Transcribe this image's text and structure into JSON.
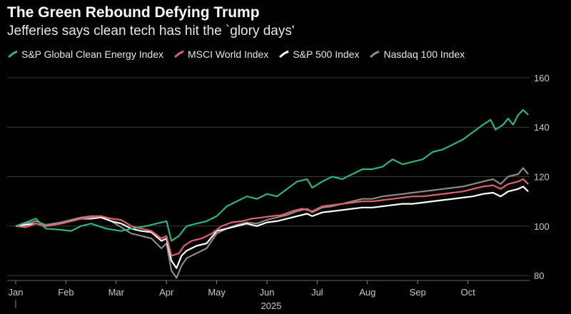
{
  "chart_data": {
    "type": "line",
    "title": "The Green Rebound Defying Trump",
    "subtitle": "Jefferies says clean tech has hit the `glory days'",
    "xlabel": "2025",
    "ylabel": "",
    "ylim": [
      78,
      162
    ],
    "y_ticks": [
      80,
      100,
      120,
      140,
      160
    ],
    "x_ticks": [
      "Jan",
      "Feb",
      "Mar",
      "Apr",
      "May",
      "Jun",
      "Jul",
      "Aug",
      "Sep",
      "Oct"
    ],
    "year_label": "2025",
    "grid": true,
    "legend_position": "top-left",
    "series": [
      {
        "name": "S&P Global Clean Energy Index",
        "color": "#2fb37a",
        "points": [
          [
            0,
            100
          ],
          [
            0.2,
            101.5
          ],
          [
            0.4,
            103
          ],
          [
            0.6,
            99
          ],
          [
            0.9,
            98.5
          ],
          [
            1.1,
            98
          ],
          [
            1.3,
            100
          ],
          [
            1.5,
            101
          ],
          [
            1.8,
            99
          ],
          [
            2.1,
            98
          ],
          [
            2.3,
            99
          ],
          [
            2.6,
            100
          ],
          [
            2.8,
            101
          ],
          [
            3.0,
            102
          ],
          [
            3.1,
            94
          ],
          [
            3.25,
            96
          ],
          [
            3.4,
            100
          ],
          [
            3.6,
            101
          ],
          [
            3.8,
            102
          ],
          [
            4.0,
            104
          ],
          [
            4.2,
            108
          ],
          [
            4.4,
            110
          ],
          [
            4.6,
            112
          ],
          [
            4.8,
            111
          ],
          [
            5.0,
            113
          ],
          [
            5.2,
            112
          ],
          [
            5.4,
            115
          ],
          [
            5.6,
            118
          ],
          [
            5.8,
            119
          ],
          [
            5.9,
            115.5
          ],
          [
            6.1,
            118
          ],
          [
            6.3,
            120
          ],
          [
            6.5,
            119
          ],
          [
            6.7,
            121
          ],
          [
            6.9,
            123
          ],
          [
            7.1,
            123
          ],
          [
            7.3,
            124
          ],
          [
            7.5,
            127
          ],
          [
            7.7,
            125
          ],
          [
            7.9,
            126
          ],
          [
            8.1,
            127
          ],
          [
            8.3,
            130
          ],
          [
            8.5,
            131
          ],
          [
            8.7,
            133
          ],
          [
            8.9,
            135
          ],
          [
            9.1,
            138
          ],
          [
            9.3,
            141
          ],
          [
            9.45,
            143
          ],
          [
            9.55,
            139
          ],
          [
            9.7,
            141
          ],
          [
            9.8,
            143.5
          ],
          [
            9.9,
            141
          ],
          [
            10.0,
            145
          ],
          [
            10.1,
            147
          ],
          [
            10.2,
            145
          ]
        ]
      },
      {
        "name": "MSCI World Index",
        "color": "#e0606e",
        "points": [
          [
            0,
            100
          ],
          [
            0.2,
            99.5
          ],
          [
            0.4,
            101
          ],
          [
            0.6,
            100
          ],
          [
            0.9,
            101
          ],
          [
            1.1,
            102
          ],
          [
            1.3,
            103
          ],
          [
            1.5,
            103.5
          ],
          [
            1.7,
            104
          ],
          [
            1.9,
            103
          ],
          [
            2.1,
            102.5
          ],
          [
            2.3,
            100
          ],
          [
            2.5,
            99
          ],
          [
            2.7,
            98
          ],
          [
            2.9,
            95
          ],
          [
            3.0,
            96
          ],
          [
            3.1,
            88
          ],
          [
            3.25,
            89
          ],
          [
            3.35,
            92
          ],
          [
            3.5,
            94
          ],
          [
            3.7,
            95
          ],
          [
            3.9,
            97
          ],
          [
            4.1,
            100
          ],
          [
            4.3,
            101.5
          ],
          [
            4.5,
            102
          ],
          [
            4.7,
            103
          ],
          [
            4.9,
            103.5
          ],
          [
            5.1,
            104
          ],
          [
            5.3,
            104.5
          ],
          [
            5.5,
            106
          ],
          [
            5.7,
            107
          ],
          [
            5.9,
            106
          ],
          [
            6.1,
            108
          ],
          [
            6.3,
            108.5
          ],
          [
            6.5,
            109
          ],
          [
            6.7,
            109.5
          ],
          [
            6.9,
            110
          ],
          [
            7.1,
            110
          ],
          [
            7.3,
            110.5
          ],
          [
            7.5,
            111
          ],
          [
            7.7,
            111.5
          ],
          [
            7.9,
            112
          ],
          [
            8.1,
            112
          ],
          [
            8.3,
            112.5
          ],
          [
            8.5,
            113
          ],
          [
            8.7,
            113.5
          ],
          [
            8.9,
            114
          ],
          [
            9.1,
            115
          ],
          [
            9.3,
            116
          ],
          [
            9.5,
            116.5
          ],
          [
            9.65,
            115
          ],
          [
            9.8,
            117
          ],
          [
            10.0,
            118
          ],
          [
            10.1,
            119
          ],
          [
            10.2,
            117
          ]
        ]
      },
      {
        "name": "S&P 500 Index",
        "color": "#ffffff",
        "points": [
          [
            0,
            100
          ],
          [
            0.2,
            100.5
          ],
          [
            0.4,
            101
          ],
          [
            0.6,
            100
          ],
          [
            0.9,
            101
          ],
          [
            1.1,
            102
          ],
          [
            1.3,
            103
          ],
          [
            1.5,
            103
          ],
          [
            1.7,
            103.5
          ],
          [
            1.9,
            102
          ],
          [
            2.1,
            101
          ],
          [
            2.3,
            99
          ],
          [
            2.5,
            98
          ],
          [
            2.7,
            97.5
          ],
          [
            2.9,
            94
          ],
          [
            3.0,
            95
          ],
          [
            3.1,
            86
          ],
          [
            3.2,
            83
          ],
          [
            3.3,
            88
          ],
          [
            3.4,
            90
          ],
          [
            3.6,
            92
          ],
          [
            3.8,
            93
          ],
          [
            4.0,
            98
          ],
          [
            4.2,
            99
          ],
          [
            4.4,
            100
          ],
          [
            4.6,
            101
          ],
          [
            4.8,
            100
          ],
          [
            5.0,
            101.5
          ],
          [
            5.2,
            102
          ],
          [
            5.4,
            103
          ],
          [
            5.6,
            104
          ],
          [
            5.8,
            105
          ],
          [
            5.9,
            104
          ],
          [
            6.1,
            105.5
          ],
          [
            6.3,
            106
          ],
          [
            6.5,
            106.5
          ],
          [
            6.7,
            107
          ],
          [
            6.9,
            107.5
          ],
          [
            7.1,
            107.5
          ],
          [
            7.3,
            108
          ],
          [
            7.5,
            108.5
          ],
          [
            7.7,
            109
          ],
          [
            7.9,
            109
          ],
          [
            8.1,
            109.5
          ],
          [
            8.3,
            110
          ],
          [
            8.5,
            110.5
          ],
          [
            8.7,
            111
          ],
          [
            8.9,
            111.5
          ],
          [
            9.1,
            112
          ],
          [
            9.3,
            113
          ],
          [
            9.5,
            113.5
          ],
          [
            9.65,
            112
          ],
          [
            9.8,
            114
          ],
          [
            10.0,
            115
          ],
          [
            10.1,
            116
          ],
          [
            10.2,
            114
          ]
        ]
      },
      {
        "name": "Nasdaq 100 Index",
        "color": "#8a8a8a",
        "points": [
          [
            0,
            100
          ],
          [
            0.2,
            101
          ],
          [
            0.4,
            102
          ],
          [
            0.6,
            100.5
          ],
          [
            0.9,
            101.5
          ],
          [
            1.1,
            102.5
          ],
          [
            1.3,
            103.5
          ],
          [
            1.5,
            104
          ],
          [
            1.7,
            104
          ],
          [
            1.9,
            102
          ],
          [
            2.1,
            99.5
          ],
          [
            2.3,
            97
          ],
          [
            2.5,
            96
          ],
          [
            2.7,
            95
          ],
          [
            2.9,
            91
          ],
          [
            3.0,
            93
          ],
          [
            3.1,
            82
          ],
          [
            3.2,
            79
          ],
          [
            3.3,
            84
          ],
          [
            3.4,
            87
          ],
          [
            3.6,
            89
          ],
          [
            3.8,
            91
          ],
          [
            4.0,
            97
          ],
          [
            4.2,
            99
          ],
          [
            4.4,
            100.5
          ],
          [
            4.6,
            101.5
          ],
          [
            4.8,
            101
          ],
          [
            5.0,
            102.5
          ],
          [
            5.2,
            103.5
          ],
          [
            5.4,
            104.5
          ],
          [
            5.6,
            106
          ],
          [
            5.8,
            107
          ],
          [
            5.9,
            105.5
          ],
          [
            6.1,
            107.5
          ],
          [
            6.3,
            108
          ],
          [
            6.5,
            109
          ],
          [
            6.7,
            110
          ],
          [
            6.9,
            111
          ],
          [
            7.1,
            111
          ],
          [
            7.3,
            112
          ],
          [
            7.5,
            112.5
          ],
          [
            7.7,
            113
          ],
          [
            7.9,
            113.5
          ],
          [
            8.1,
            114
          ],
          [
            8.3,
            114.5
          ],
          [
            8.5,
            115
          ],
          [
            8.7,
            115.5
          ],
          [
            8.9,
            116
          ],
          [
            9.1,
            117
          ],
          [
            9.3,
            118
          ],
          [
            9.5,
            119
          ],
          [
            9.65,
            117
          ],
          [
            9.8,
            120
          ],
          [
            10.0,
            121
          ],
          [
            10.1,
            123.5
          ],
          [
            10.2,
            121
          ]
        ]
      }
    ]
  }
}
